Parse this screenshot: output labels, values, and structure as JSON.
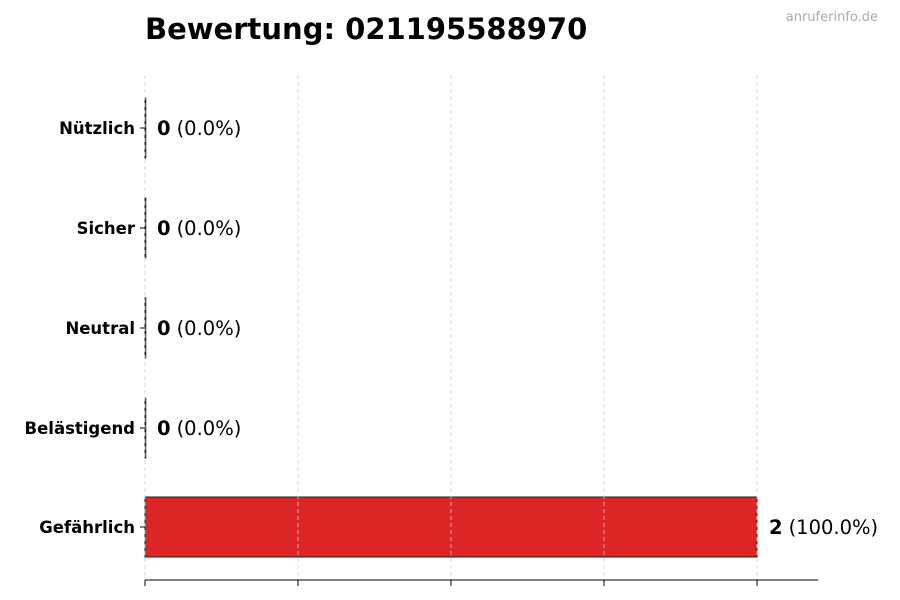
{
  "title": "Bewertung: 021195588970",
  "watermark": "anruferinfo.de",
  "chart_data": {
    "type": "bar",
    "orientation": "horizontal",
    "title": "Bewertung: 021195588970",
    "categories": [
      "Nützlich",
      "Sicher",
      "Neutral",
      "Belästigend",
      "Gefährlich"
    ],
    "values": [
      0,
      0,
      0,
      0,
      2
    ],
    "data_labels": [
      {
        "count": "0",
        "percent": "(0.0%)"
      },
      {
        "count": "0",
        "percent": "(0.0%)"
      },
      {
        "count": "0",
        "percent": "(0.0%)"
      },
      {
        "count": "0",
        "percent": "(0.0%)"
      },
      {
        "count": "2",
        "percent": "(100.0%)"
      }
    ],
    "colors": [
      "#dc2626",
      "#dc2626",
      "#dc2626",
      "#dc2626",
      "#dc2626"
    ],
    "xlim": [
      0,
      2.2
    ],
    "xticks": [
      0,
      0.5,
      1,
      1.5,
      2
    ],
    "xtick_labels_shown": false,
    "grid": "x, dashed",
    "xlabel": "",
    "ylabel": ""
  }
}
